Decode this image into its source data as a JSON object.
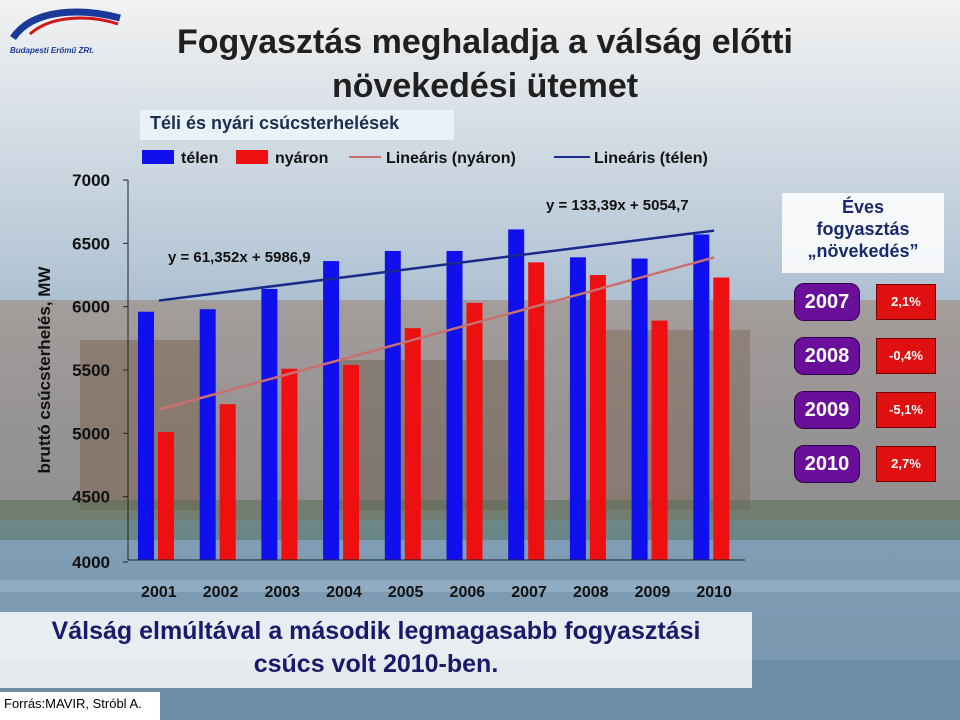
{
  "logo": {
    "text": "Budapesti Erőmű ZRt."
  },
  "title_line1": "Fogyasztás meghaladja a válság előtti",
  "title_line2": "növekedési ütemet",
  "subtitle": "Téli és nyári csúcsterhelések",
  "chart_data": {
    "type": "bar",
    "title": "Téli és nyári csúcsterhelések",
    "ylabel": "bruttó csúcsterhelés, MW",
    "xlabel": "",
    "ylim": [
      4000,
      7000
    ],
    "yticks": [
      "4000",
      "4500",
      "5000",
      "5500",
      "6000",
      "6500",
      "7000"
    ],
    "categories": [
      "2001",
      "2002",
      "2003",
      "2004",
      "2005",
      "2006",
      "2007",
      "2008",
      "2009",
      "2010"
    ],
    "series": [
      {
        "name": "télen",
        "color": "#1010ee",
        "values": [
          5960,
          5980,
          6140,
          6360,
          6440,
          6440,
          6610,
          6390,
          6380,
          6570
        ]
      },
      {
        "name": "nyáron",
        "color": "#ee1010",
        "values": [
          5010,
          5230,
          5510,
          5540,
          5830,
          6030,
          6350,
          6250,
          5890,
          6230
        ]
      }
    ],
    "trendlines": [
      {
        "name": "Lineáris (nyáron)",
        "color": "#c87070",
        "slope": 133.39,
        "intercept": 5054.7,
        "equation": "y = 133,39x + 5054,7"
      },
      {
        "name": "Lineáris (télen)",
        "color": "#1a2a8a",
        "slope": 61.352,
        "intercept": 5986.9,
        "equation": "y = 61,352x + 5986,9"
      }
    ],
    "legend": [
      "télen",
      "nyáron",
      "Lineáris (nyáron)",
      "Lineáris (télen)"
    ],
    "legend_position": "top",
    "grid": false
  },
  "growth_panel": {
    "title_line1": "Éves",
    "title_line2": "fogyasztás",
    "title_line3": "„növekedés”",
    "rows": [
      {
        "year": "2007",
        "value": "2,1%"
      },
      {
        "year": "2008",
        "value": "-0,4%"
      },
      {
        "year": "2009",
        "value": "-5,1%"
      },
      {
        "year": "2010",
        "value": "2,7%"
      }
    ]
  },
  "note_line1": "Válság elmúltával a második legmagasabb fogyasztási",
  "note_line2": "csúcs volt 2010-ben.",
  "source": "Forrás:MAVIR, Stróbl A."
}
